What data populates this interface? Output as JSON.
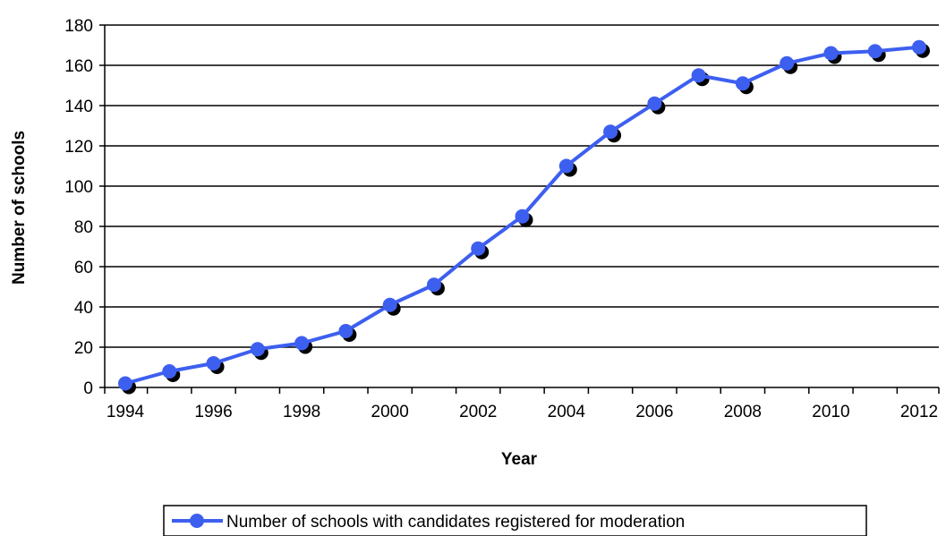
{
  "chart_data": {
    "type": "line",
    "title": "",
    "xlabel": "Year",
    "ylabel": "Number of schools",
    "ylim": [
      0,
      180
    ],
    "xlim": [
      1994,
      2012
    ],
    "yticks": [
      "0",
      "20",
      "40",
      "60",
      "80",
      "100",
      "120",
      "140",
      "160",
      "180"
    ],
    "xticks": [
      "1994",
      "1996",
      "1998",
      "2000",
      "2002",
      "2004",
      "2006",
      "2008",
      "2010",
      "2012"
    ],
    "grid": "horizontal",
    "legend_position": "bottom",
    "series": [
      {
        "name": "Number of schools with candidates registered for moderation",
        "color": "#3d5ff0",
        "shadow_color": "#000000",
        "x": [
          1994,
          1995,
          1996,
          1997,
          1998,
          1999,
          2000,
          2001,
          2002,
          2003,
          2004,
          2005,
          2006,
          2007,
          2008,
          2009,
          2010,
          2011,
          2012
        ],
        "values": [
          2,
          8,
          12,
          19,
          22,
          28,
          41,
          51,
          69,
          85,
          110,
          127,
          141,
          155,
          151,
          161,
          166,
          167,
          169
        ]
      }
    ]
  }
}
